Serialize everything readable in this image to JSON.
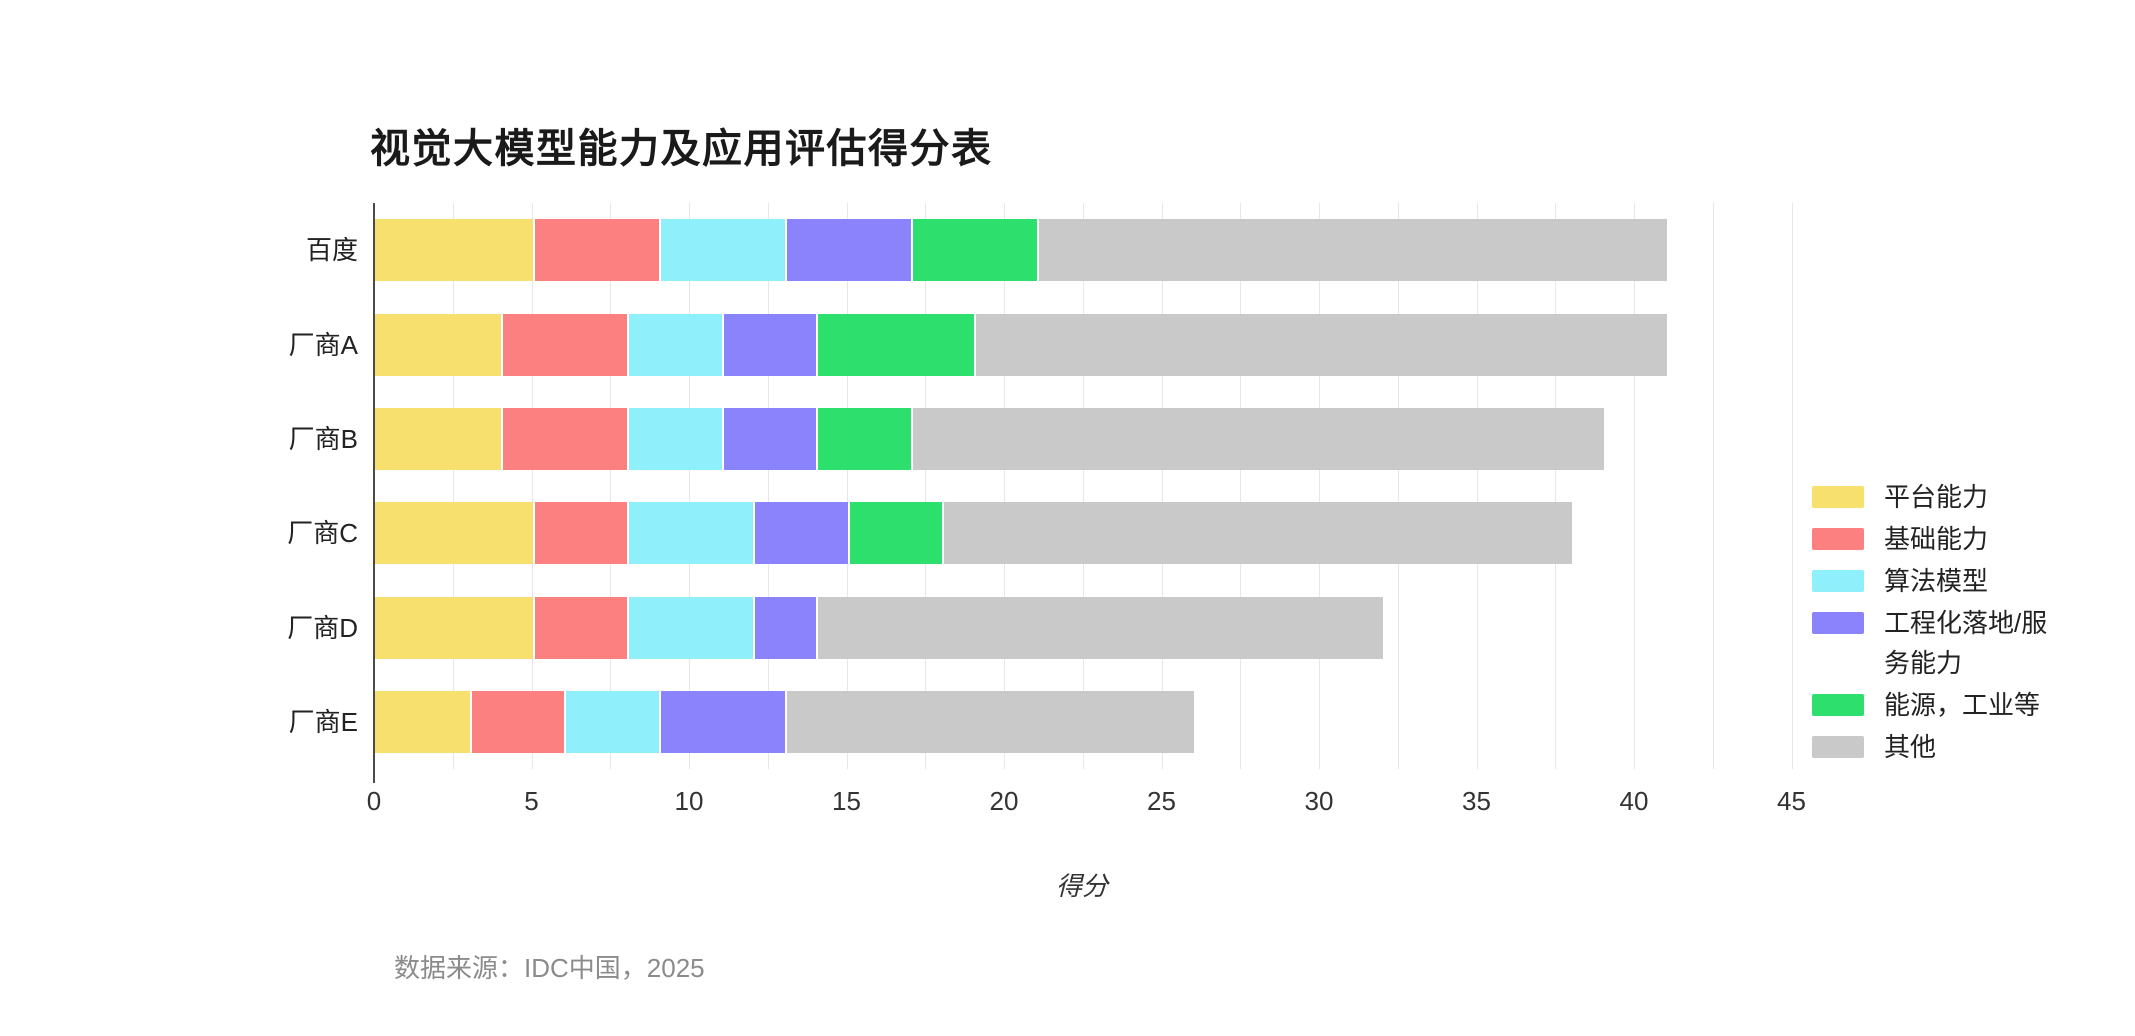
{
  "title": "视觉大模型能力及应用评估得分表",
  "source_note": "数据来源：IDC中国，2025",
  "chart_data": {
    "type": "bar",
    "orientation": "horizontal",
    "stacked": true,
    "title": "视觉大模型能力及应用评估得分表",
    "xlabel": "得分",
    "ylabel": "",
    "categories": [
      "百度",
      "厂商A",
      "厂商B",
      "厂商C",
      "厂商D",
      "厂商E"
    ],
    "series": [
      {
        "name": "平台能力",
        "color": "#F8E06E",
        "values": [
          5,
          4,
          4,
          5,
          5,
          3
        ]
      },
      {
        "name": "基础能力",
        "color": "#FC8080",
        "values": [
          4,
          4,
          4,
          3,
          3,
          3
        ]
      },
      {
        "name": "算法模型",
        "color": "#8FEFFA",
        "values": [
          4,
          3,
          3,
          4,
          4,
          3
        ]
      },
      {
        "name": "工程化落地/服务能力",
        "color": "#8B83FB",
        "values": [
          4,
          3,
          3,
          3,
          2,
          4
        ]
      },
      {
        "name": "能源，工业等",
        "color": "#2DE06E",
        "values": [
          4,
          5,
          3,
          3,
          0,
          0
        ]
      },
      {
        "name": "其他",
        "color": "#C9C9C9",
        "values": [
          20,
          22,
          22,
          20,
          18,
          13
        ]
      }
    ],
    "totals": [
      41,
      41,
      39,
      38,
      32,
      26
    ],
    "xlim": [
      0,
      45
    ],
    "x_ticks": [
      0,
      5,
      10,
      15,
      20,
      25,
      30,
      35,
      40,
      45
    ],
    "grid_step": 2.5,
    "grid": true,
    "legend_position": "right",
    "axis_color": "#4a4a4a",
    "gridline_color": "#e7e7e7"
  }
}
